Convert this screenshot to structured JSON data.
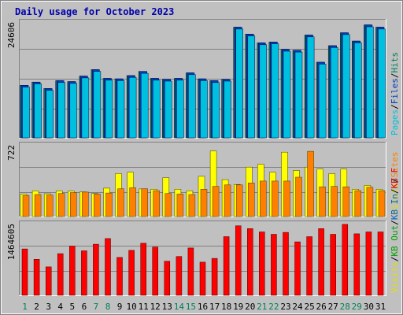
{
  "chart_data": {
    "type": "bar",
    "title": "Daily usage for October 2023",
    "categories": [
      "1",
      "2",
      "3",
      "4",
      "5",
      "6",
      "7",
      "8",
      "9",
      "10",
      "11",
      "12",
      "13",
      "14",
      "15",
      "16",
      "17",
      "18",
      "19",
      "20",
      "21",
      "22",
      "23",
      "24",
      "25",
      "26",
      "27",
      "28",
      "29",
      "30",
      "31"
    ],
    "weekend_days": [
      "1",
      "7",
      "8",
      "14",
      "15",
      "21",
      "22",
      "28",
      "29"
    ],
    "panels": [
      {
        "id": "top",
        "ymax_label": "24606",
        "ymax": 24606,
        "legend": [
          {
            "text": "Pages",
            "color": "#00c0e0"
          },
          {
            "text": "/",
            "color": "#000000"
          },
          {
            "text": "Files",
            "color": "#0040c0"
          },
          {
            "text": "/",
            "color": "#000000"
          },
          {
            "text": "Hits",
            "color": "#00805c"
          }
        ],
        "series": [
          {
            "name": "Hits",
            "color": "#00805c",
            "values": [
              11400,
              12100,
              10700,
              12400,
              12200,
              13400,
              14800,
              12900,
              12800,
              13500,
              14400,
              12900,
              12700,
              12900,
              14100,
              12800,
              12400,
              12700,
              24000,
              22500,
              20600,
              20800,
              19200,
              19000,
              22300,
              16400,
              20000,
              22800,
              21000,
              24500,
              24000
            ]
          },
          {
            "name": "Files",
            "color": "#0040c0",
            "values": [
              11400,
              12100,
              10700,
              12400,
              12200,
              13400,
              14800,
              12900,
              12800,
              13500,
              14400,
              12900,
              12700,
              12900,
              14100,
              12800,
              12400,
              12700,
              24000,
              22500,
              20600,
              20800,
              19200,
              19000,
              22300,
              16400,
              20000,
              22800,
              21000,
              24500,
              24000
            ]
          },
          {
            "name": "Pages",
            "color": "#00c0e0",
            "values": [
              11000,
              11700,
              10300,
              12000,
              11800,
              13000,
              14400,
              12500,
              12400,
              13100,
              14000,
              12500,
              12300,
              12500,
              13700,
              12400,
              12000,
              12300,
              23600,
              22100,
              20200,
              20400,
              18800,
              18600,
              21900,
              16000,
              19600,
              22400,
              20600,
              24100,
              23600
            ]
          }
        ]
      },
      {
        "id": "middle",
        "ymax_label": "722",
        "ymax": 722,
        "legend": [
          {
            "text": "Visits",
            "color": "#e0e000"
          },
          {
            "text": "/",
            "color": "#000000"
          },
          {
            "text": "Sites",
            "color": "#ff8000"
          }
        ],
        "series": [
          {
            "name": "Visits",
            "color": "#ffff00",
            "values": [
              235,
              268,
              238,
              268,
              266,
              258,
              240,
              296,
              449,
              462,
              288,
              285,
              405,
              285,
              268,
              419,
              683,
              385,
              335,
              515,
              546,
              462,
              671,
              480,
              515,
              495,
              448,
              495,
              285,
              325,
              285
            ]
          },
          {
            "name": "Sites",
            "color": "#ff8000",
            "values": [
              220,
              230,
              225,
              240,
              250,
              255,
              235,
              245,
              290,
              300,
              290,
              270,
              240,
              235,
              230,
              285,
              315,
              330,
              330,
              350,
              370,
              370,
              370,
              410,
              680,
              310,
              315,
              310,
              270,
              305,
              270
            ]
          }
        ]
      },
      {
        "id": "bottom",
        "ymax_label": "1464605",
        "ymax": 1464605,
        "legend": [
          {
            "text": "Visits",
            "color": "#e0e000"
          },
          {
            "text": "/",
            "color": "#000000"
          },
          {
            "text": "KB Out",
            "color": "#00a000"
          },
          {
            "text": "/",
            "color": "#000000"
          },
          {
            "text": "KB In",
            "color": "#0060c0"
          },
          {
            "text": "/",
            "color": "#000000"
          },
          {
            "text": "KB F",
            "color": "#e00000"
          }
        ],
        "series": [
          {
            "name": "KB F",
            "color": "#ff0000",
            "values": [
              980000,
              760000,
              600000,
              880000,
              1040000,
              940000,
              1080000,
              1200000,
              800000,
              950000,
              1100000,
              1020000,
              720000,
              820000,
              1000000,
              700000,
              780000,
              1240000,
              1470000,
              1410000,
              1340000,
              1290000,
              1330000,
              1130000,
              1240000,
              1410000,
              1290000,
              1500000,
              1300000,
              1340000,
              1340000
            ]
          }
        ]
      }
    ]
  }
}
